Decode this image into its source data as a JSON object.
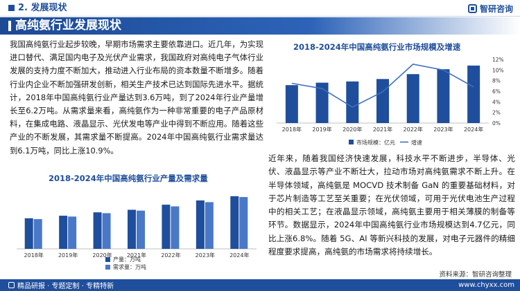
{
  "header": {
    "section": "2. 发展现状",
    "brand": "智研咨询"
  },
  "title": "高纯氨行业发展现状",
  "paragraphs": {
    "left": "我国高纯氨行业起步较晚，早期市场需求主要依靠进口。近几年，为实现进口替代、满足国内电子及光伏产业需求，我国政府对高纯电子气体行业发展的支持力度不断加大，推动进入行业布局的资本数量不断增多。随着行业内企业不断加强研发创新，相关生产技术已达到国际先进水平。据统计，2018年中国高纯氨行业产量达到3.6万吨，到了2024年行业产量增长至6.2万吨。从需求量来看，高纯氨作为一种非常重要的电子产品原材料，在集成电路、液晶显示、光伏发电等产业中得到不断应用。随着这些产业的不断发展，其需求量不断提高。2024年中国高纯氨行业需求量达到6.1万吨，同比上涨10.9%。",
    "right": "近年来，随着我国经济快速发展，科技水平不断进步，半导体、光伏、液晶显示等产业不断壮大，拉动市场对高纯氨需求不断上升。在半导体领域，高纯氨是 MOCVD 技术制备 GaN 的重要基础材料，对于芯片制造等工艺至关重要；在光伏领域，可用于光伏电池生产过程中的相关工艺；在液晶显示领域，高纯氨主要用于相关薄膜的制备等环节。数据显示，2024年中国高纯氨行业市场规模达到4.7亿元，同比上涨6.8%。随着 5G、AI 等新兴科技的发展，对电子元器件的精细程度要求提高，高纯氨的市场需求将持续增长。"
  },
  "chart_data": [
    {
      "type": "bar",
      "title": "2018-2024年中国高纯氨行业产量及需求量",
      "categories": [
        "2018年",
        "2019年",
        "2020年",
        "2021年",
        "2022年",
        "2023年",
        "2024年"
      ],
      "series": [
        {
          "name": "产量：万吨",
          "color": "#1f4e9c",
          "values": [
            3.6,
            3.9,
            4.3,
            4.6,
            5.2,
            5.7,
            6.2
          ]
        },
        {
          "name": "需求量：万吨",
          "color": "#4a78c8",
          "values": [
            3.5,
            3.8,
            4.2,
            4.5,
            5.0,
            5.5,
            6.1
          ]
        }
      ],
      "ylim": [
        0,
        7
      ],
      "legend": "bottom"
    },
    {
      "type": "bar+line",
      "title": "2018-2024年中国高纯氨行业市场规模及增速",
      "categories": [
        "2018年",
        "2019年",
        "2020年",
        "2021年",
        "2022年",
        "2023年",
        "2024年"
      ],
      "series": [
        {
          "name": "市场规模：亿元",
          "type": "bar",
          "color": "#1f4e9c",
          "values": [
            3.1,
            3.3,
            3.4,
            3.6,
            4.0,
            4.4,
            4.7
          ]
        },
        {
          "name": "增速",
          "type": "line",
          "color": "#3f6fbf",
          "values": [
            7.5,
            6.5,
            3.0,
            5.9,
            11.1,
            10.0,
            6.8
          ]
        }
      ],
      "ylim": [
        0,
        5.2
      ],
      "y2ticks": [
        "12%",
        "10%",
        "8%",
        "6%",
        "4%",
        "2%",
        "0%"
      ],
      "y2lim": [
        0,
        12
      ],
      "legend": "bottom"
    }
  ],
  "footer": {
    "left": "精品研报 · 专题定制 · 专精特新",
    "right": "www.chyxx.com",
    "source": "资料来源：智研咨询整理"
  }
}
